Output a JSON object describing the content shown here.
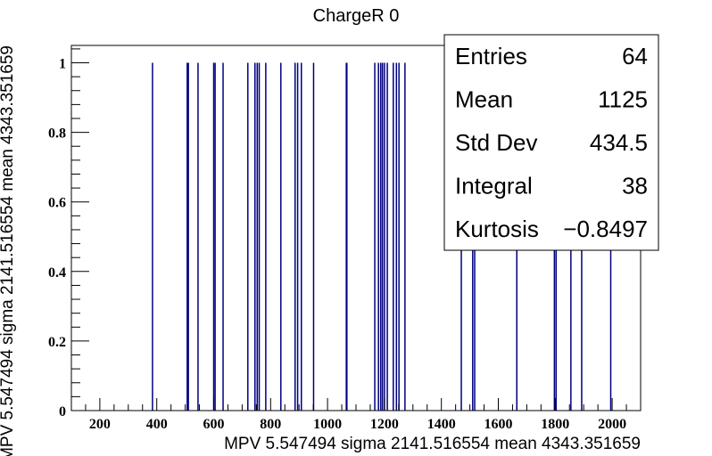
{
  "chart_data": {
    "type": "bar",
    "title": "ChargeR 0",
    "xlabel": "MPV 5.547494 sigma 2141.516554 mean 4343.351659",
    "ylabel": "MPV 5.547494 sigma 2141.516554 mean 4343.351659",
    "xlim": [
      100,
      2100
    ],
    "ylim": [
      0,
      1.05
    ],
    "x_ticks": [
      "200",
      "400",
      "600",
      "800",
      "1000",
      "1200",
      "1400",
      "1600",
      "1800",
      "2000"
    ],
    "y_ticks": [
      "0",
      "0.2",
      "0.4",
      "0.6",
      "0.8",
      "1"
    ],
    "grid": false,
    "bar_color": "#000080",
    "x": [
      385,
      507,
      511,
      545,
      600,
      605,
      633,
      720,
      745,
      753,
      760,
      783,
      836,
      886,
      895,
      908,
      951,
      1066,
      1068,
      1166,
      1179,
      1187,
      1193,
      1200,
      1210,
      1231,
      1242,
      1251,
      1272,
      1470,
      1510,
      1517,
      1665,
      1797,
      1803,
      1855,
      1893,
      1995
    ],
    "values": [
      1,
      1,
      1,
      1,
      1,
      1,
      1,
      1,
      1,
      1,
      1,
      1,
      1,
      1,
      1,
      1,
      1,
      1,
      1,
      1,
      1,
      1,
      1,
      1,
      1,
      1,
      1,
      1,
      1,
      1,
      1,
      1,
      1,
      1,
      1,
      1,
      1,
      1
    ]
  },
  "stats": [
    {
      "label": "Entries",
      "value": "64"
    },
    {
      "label": "Mean",
      "value": "1125"
    },
    {
      "label": "Std Dev",
      "value": "434.5"
    },
    {
      "label": "Integral",
      "value": "38"
    },
    {
      "label": "Kurtosis",
      "value": "−0.8497"
    }
  ]
}
